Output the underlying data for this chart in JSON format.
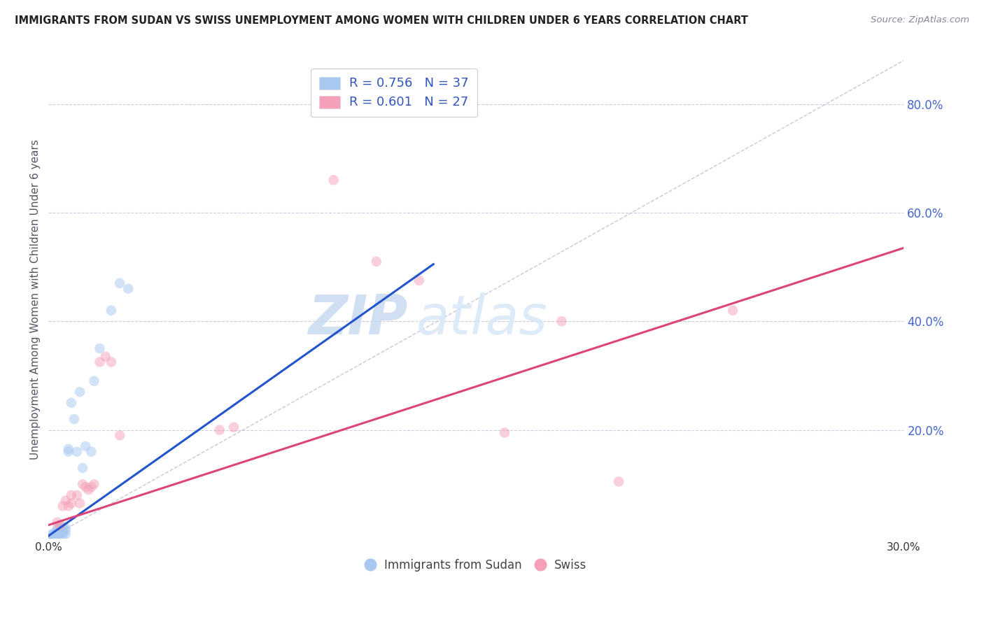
{
  "title": "IMMIGRANTS FROM SUDAN VS SWISS UNEMPLOYMENT AMONG WOMEN WITH CHILDREN UNDER 6 YEARS CORRELATION CHART",
  "source": "Source: ZipAtlas.com",
  "ylabel": "Unemployment Among Women with Children Under 6 years",
  "xlim": [
    0.0,
    0.3
  ],
  "ylim": [
    0.0,
    0.88
  ],
  "xticks": [
    0.0,
    0.05,
    0.1,
    0.15,
    0.2,
    0.25,
    0.3
  ],
  "yticks_right": [
    0.2,
    0.4,
    0.6,
    0.8
  ],
  "legend_line1": "R = 0.756   N = 37",
  "legend_line2": "R = 0.601   N = 27",
  "legend_color1": "#a8c8f0",
  "legend_color2": "#f4a0b8",
  "blue_scatter_x": [
    0.001,
    0.001,
    0.002,
    0.002,
    0.002,
    0.002,
    0.003,
    0.003,
    0.003,
    0.003,
    0.003,
    0.004,
    0.004,
    0.004,
    0.005,
    0.005,
    0.005,
    0.005,
    0.006,
    0.006,
    0.006,
    0.007,
    0.007,
    0.008,
    0.009,
    0.01,
    0.011,
    0.012,
    0.013,
    0.015,
    0.016,
    0.018,
    0.022,
    0.025,
    0.028,
    0.001,
    0.002
  ],
  "blue_scatter_y": [
    0.005,
    0.008,
    0.003,
    0.006,
    0.01,
    0.002,
    0.005,
    0.008,
    0.012,
    0.015,
    0.018,
    0.003,
    0.01,
    0.02,
    0.005,
    0.012,
    0.015,
    0.022,
    0.008,
    0.015,
    0.02,
    0.16,
    0.165,
    0.25,
    0.22,
    0.16,
    0.27,
    0.13,
    0.17,
    0.16,
    0.29,
    0.35,
    0.42,
    0.47,
    0.46,
    0.002,
    0.001
  ],
  "pink_scatter_x": [
    0.003,
    0.004,
    0.005,
    0.006,
    0.007,
    0.008,
    0.008,
    0.01,
    0.011,
    0.012,
    0.013,
    0.014,
    0.015,
    0.016,
    0.018,
    0.02,
    0.022,
    0.025,
    0.06,
    0.065,
    0.1,
    0.115,
    0.13,
    0.16,
    0.18,
    0.2,
    0.24
  ],
  "pink_scatter_y": [
    0.03,
    0.025,
    0.06,
    0.07,
    0.06,
    0.08,
    0.065,
    0.08,
    0.065,
    0.1,
    0.095,
    0.09,
    0.095,
    0.1,
    0.325,
    0.335,
    0.325,
    0.19,
    0.2,
    0.205,
    0.66,
    0.51,
    0.475,
    0.195,
    0.4,
    0.105,
    0.42
  ],
  "blue_line_x": [
    0.0,
    0.135
  ],
  "blue_line_y": [
    0.005,
    0.505
  ],
  "pink_line_x": [
    0.0,
    0.3
  ],
  "pink_line_y": [
    0.025,
    0.535
  ],
  "ref_line_x": [
    0.0,
    0.3
  ],
  "ref_line_y": [
    0.0,
    0.88
  ],
  "scatter_size": 110,
  "scatter_alpha": 0.5,
  "blue_scatter_color": "#a8c8f0",
  "pink_scatter_color": "#f4a0b8",
  "blue_line_color": "#2255cc",
  "pink_line_color": "#dd4477",
  "ref_line_color": "#bbbbcc",
  "grid_color": "#ccccdd",
  "title_color": "#222222",
  "axis_label_color": "#555566",
  "right_tick_color": "#4466cc",
  "watermark_zip_color": "#c8daf0",
  "watermark_atlas_color": "#d8e8f8",
  "watermark_fontsize": 56,
  "background_color": "#ffffff",
  "legend_text_color": "#3355bb",
  "bottom_legend_label1": "Immigrants from Sudan",
  "bottom_legend_label2": "Swiss"
}
